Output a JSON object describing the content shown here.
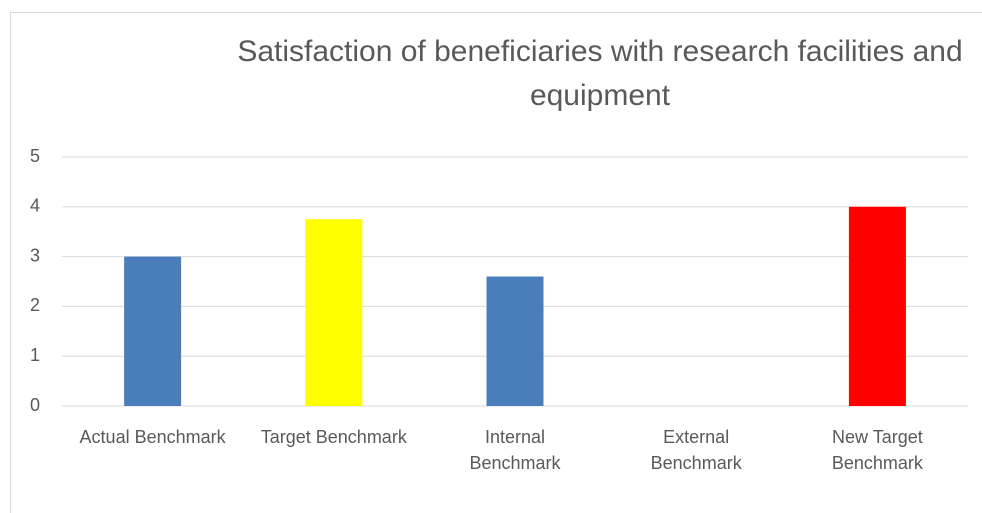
{
  "chart_data": {
    "type": "bar",
    "title": "Satisfaction of beneficiaries with research facilities and equipment",
    "categories": [
      "Actual Benchmark",
      "Target Benchmark",
      "Internal Benchmark",
      "External Benchmark",
      "New Target Benchmark"
    ],
    "values": [
      3,
      3.75,
      2.6,
      null,
      4
    ],
    "colors": [
      "#4a7ebb",
      "#ffff00",
      "#4a7ebb",
      "#4a7ebb",
      "#ff0000"
    ],
    "ylim": [
      0,
      5
    ],
    "yticks": [
      0,
      1,
      2,
      3,
      4,
      5
    ],
    "grid": true
  }
}
